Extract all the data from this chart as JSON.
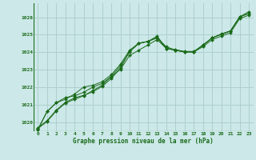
{
  "title": "Graphe pression niveau de la mer (hPa)",
  "background_color": "#cce8e8",
  "plot_bg_color": "#cce8e8",
  "grid_color": "#aacccc",
  "line_color": "#1a6b1a",
  "marker_color": "#1a6b1a",
  "xlim": [
    -0.5,
    23.5
  ],
  "ylim": [
    1019.5,
    1026.8
  ],
  "yticks": [
    1020,
    1021,
    1022,
    1023,
    1024,
    1025,
    1026
  ],
  "xticks": [
    0,
    1,
    2,
    3,
    4,
    5,
    6,
    7,
    8,
    9,
    10,
    11,
    12,
    13,
    14,
    15,
    16,
    17,
    18,
    19,
    20,
    21,
    22,
    23
  ],
  "series": [
    [
      1019.7,
      1020.1,
      1020.7,
      1021.15,
      1021.4,
      1021.55,
      1021.75,
      1022.05,
      1022.5,
      1023.1,
      1024.05,
      1024.5,
      1024.62,
      1024.85,
      1024.22,
      1024.15,
      1024.05,
      1024.05,
      1024.4,
      1024.82,
      1025.05,
      1025.22,
      1026.02,
      1026.22
    ],
    [
      1019.65,
      1020.05,
      1020.65,
      1021.1,
      1021.32,
      1021.52,
      1021.82,
      1022.12,
      1022.62,
      1023.02,
      1023.82,
      1024.12,
      1024.42,
      1024.72,
      1024.22,
      1024.12,
      1024.02,
      1024.02,
      1024.32,
      1024.72,
      1024.92,
      1025.12,
      1025.92,
      1026.12
    ],
    [
      1019.6,
      1020.62,
      1021.12,
      1021.32,
      1021.62,
      1022.02,
      1022.12,
      1022.32,
      1022.72,
      1023.32,
      1024.12,
      1024.52,
      1024.62,
      1024.92,
      1024.22,
      1024.12,
      1024.02,
      1024.02,
      1024.42,
      1024.82,
      1025.02,
      1025.22,
      1026.02,
      1026.32
    ],
    [
      1019.6,
      1020.62,
      1021.12,
      1021.42,
      1021.52,
      1021.72,
      1022.02,
      1022.22,
      1022.62,
      1023.22,
      1024.02,
      1024.52,
      1024.62,
      1024.82,
      1024.32,
      1024.12,
      1024.02,
      1024.02,
      1024.42,
      1024.82,
      1025.02,
      1025.22,
      1026.02,
      1026.22
    ]
  ]
}
